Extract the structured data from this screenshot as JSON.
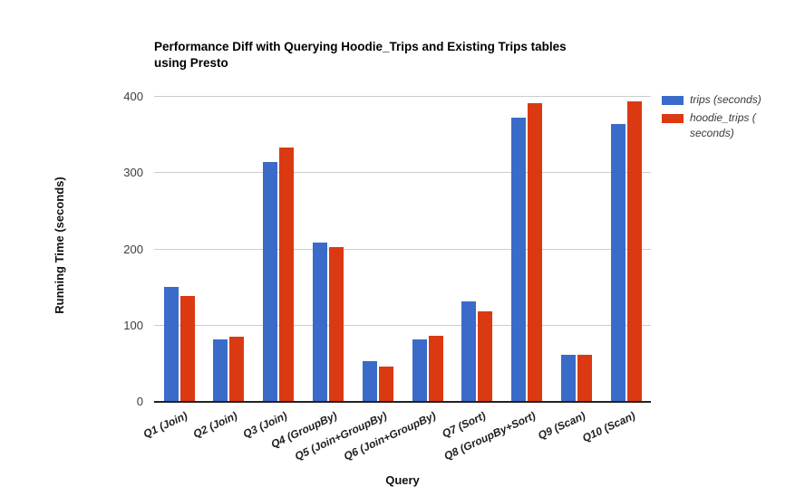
{
  "chart": {
    "title": "Performance Diff with Querying Hoodie_Trips and Existing Trips tables\nusing Presto",
    "x_axis_title": "Query",
    "y_axis_title": "Running Time (seconds)",
    "legend": [
      {
        "label": "trips (seconds)",
        "color": "#3A6BC9"
      },
      {
        "label": "hoodie_trips (\nseconds)",
        "color": "#DB3912"
      }
    ]
  },
  "chart_data": {
    "type": "bar",
    "title": "Performance Diff with Querying Hoodie_Trips and Existing Trips tables using Presto",
    "xlabel": "Query",
    "ylabel": "Running Time (seconds)",
    "categories": [
      "Q1 (Join)",
      "Q2 (Join)",
      "Q3 (Join)",
      "Q4 (GroupBy)",
      "Q5 (Join+GroupBy)",
      "Q6 (Join+GroupBy)",
      "Q7 (Sort)",
      "Q8 (GroupBy+Sort)",
      "Q9 (Scan)",
      "Q10 (Scan)"
    ],
    "series": [
      {
        "name": "trips (seconds)",
        "color": "#3A6BC9",
        "values": [
          150,
          81,
          313,
          208,
          52,
          81,
          131,
          371,
          61,
          363
        ]
      },
      {
        "name": "hoodie_trips (seconds)",
        "color": "#DB3912",
        "values": [
          138,
          84,
          332,
          202,
          45,
          85,
          117,
          390,
          60,
          393
        ]
      }
    ],
    "ylim": [
      0,
      400
    ],
    "yticks": [
      0,
      100,
      200,
      300,
      400
    ],
    "grid": true,
    "legend_position": "right",
    "colors": {
      "grid": "#cccccc",
      "axis": "#212121",
      "title_text": "#000000",
      "tick_text": "#3d3d3d"
    }
  }
}
